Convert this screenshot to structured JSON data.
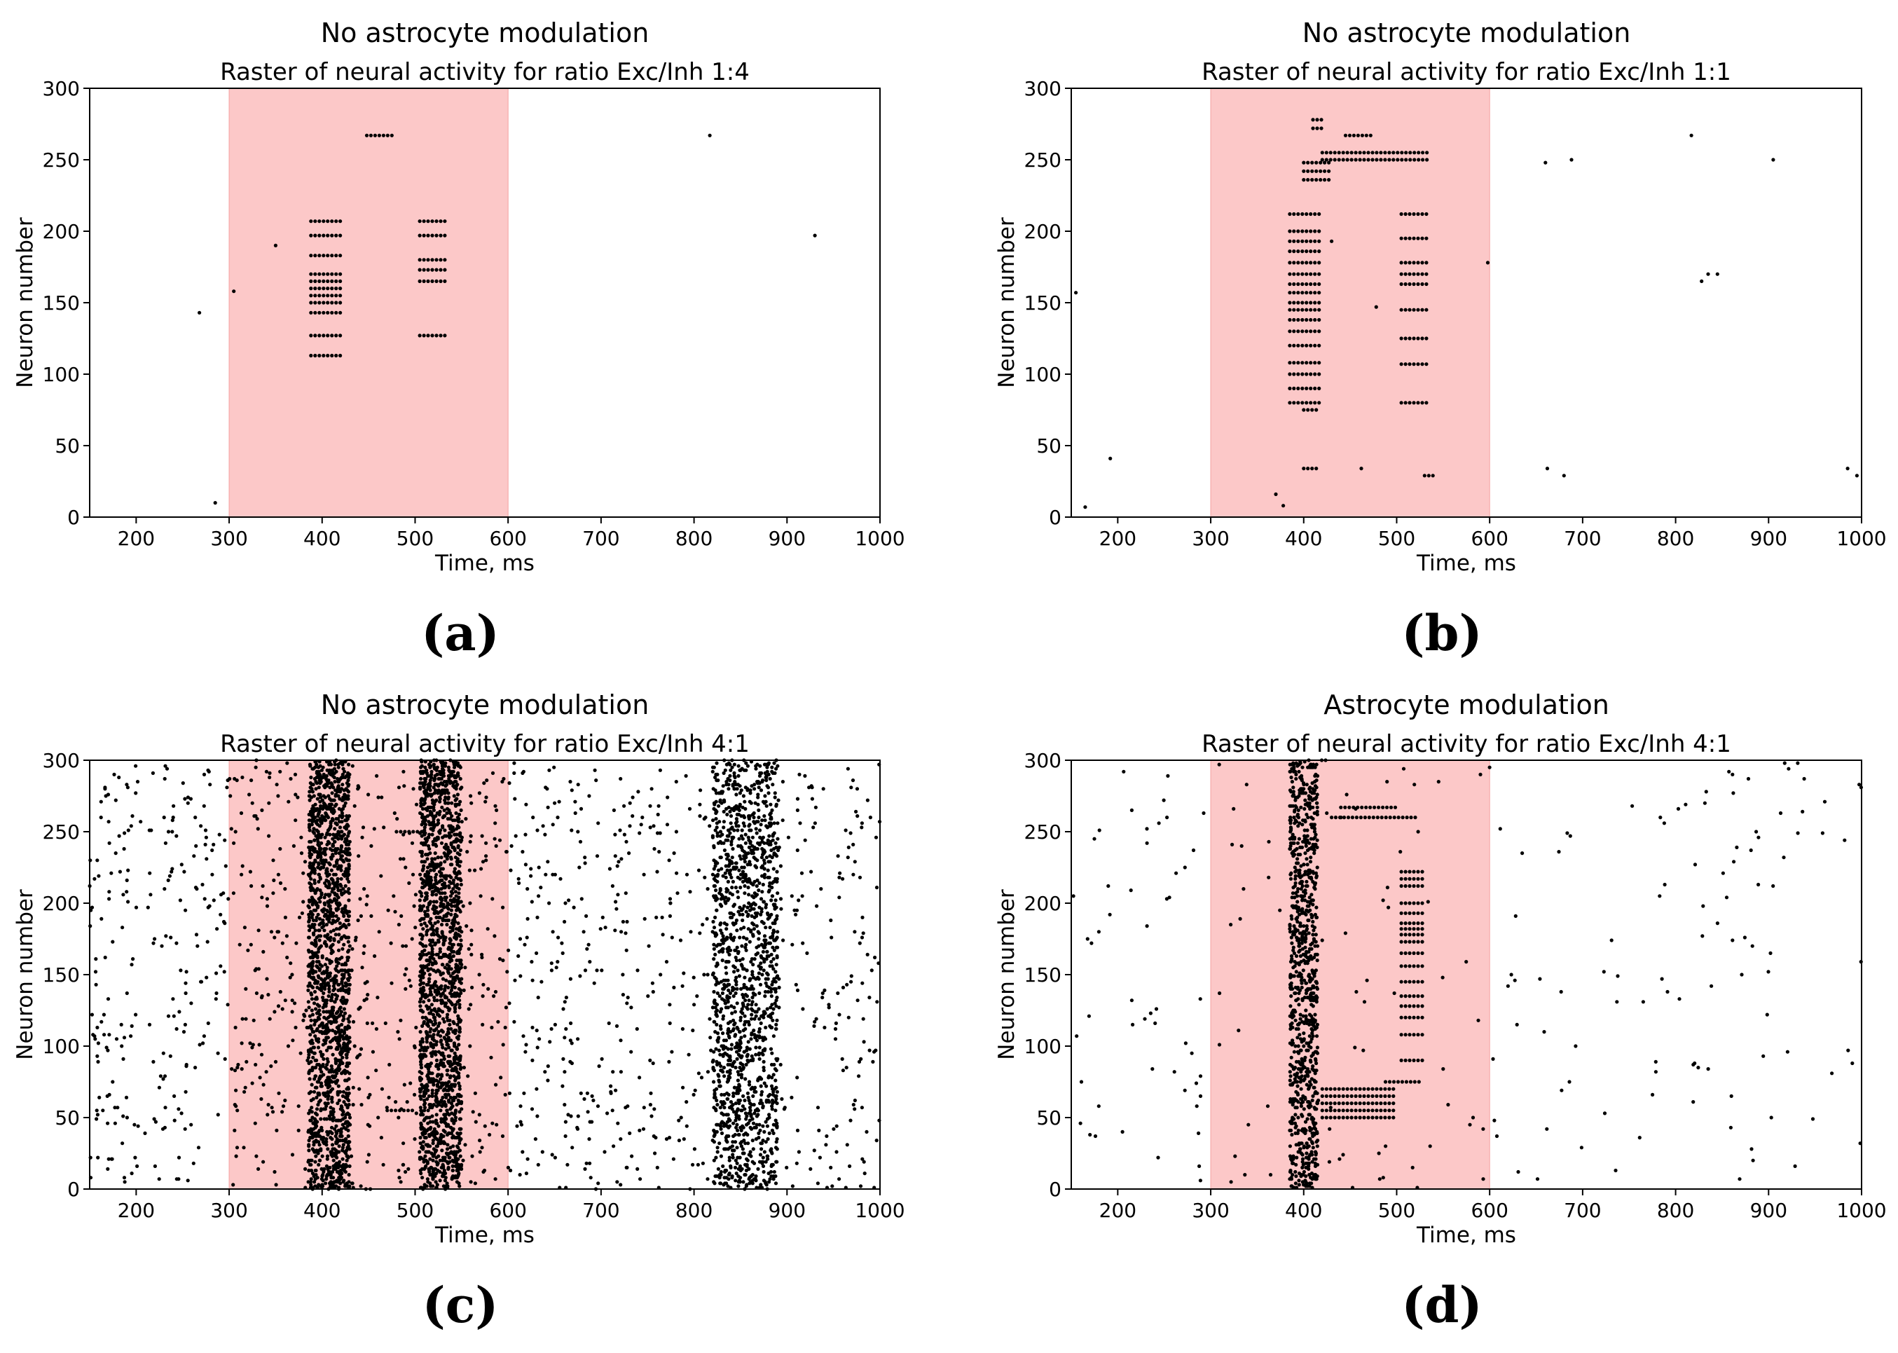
{
  "colors": {
    "stimulus": "#fcc8c8",
    "stimulus_edge": "#f4a0a0",
    "spike": "#000000",
    "axes": "#000000"
  },
  "chart_data": [
    {
      "panel": "(a)",
      "type": "scatter",
      "suptitle": "No astrocyte modulation",
      "title": "Raster of neural activity for ratio Exc/Inh 1:4",
      "xlabel": "Time, ms",
      "ylabel": "Neuron number",
      "xlim": [
        150,
        1000
      ],
      "ylim": [
        0,
        300
      ],
      "xticks": [
        200,
        300,
        400,
        500,
        600,
        700,
        800,
        900,
        1000
      ],
      "yticks": [
        0,
        50,
        100,
        150,
        200,
        250,
        300
      ],
      "stimulus": [
        300,
        600
      ],
      "isolated_spikes": [
        [
          268,
          143
        ],
        [
          285,
          10
        ],
        [
          305,
          158
        ],
        [
          350,
          190
        ],
        [
          817,
          267
        ],
        [
          930,
          197
        ]
      ],
      "row_bursts": [
        {
          "t": [
            388,
            420
          ],
          "rows": [
            207,
            197,
            183,
            170,
            165,
            160,
            155,
            150,
            143,
            127,
            113
          ],
          "step": 4.5
        },
        {
          "t": [
            448,
            478
          ],
          "rows": [
            267
          ],
          "step": 4.5
        },
        {
          "t": [
            505,
            535
          ],
          "rows": [
            207,
            197,
            180,
            173,
            165,
            127
          ],
          "step": 4.5
        }
      ],
      "random_bursts": [],
      "background_spikes": 0
    },
    {
      "panel": "(b)",
      "type": "scatter",
      "suptitle": "No astrocyte modulation",
      "title": "Raster of neural activity for ratio Exc/Inh 1:1",
      "xlabel": "Time, ms",
      "ylabel": "Neuron number",
      "xlim": [
        150,
        1000
      ],
      "ylim": [
        0,
        300
      ],
      "xticks": [
        200,
        300,
        400,
        500,
        600,
        700,
        800,
        900,
        1000
      ],
      "yticks": [
        0,
        50,
        100,
        150,
        200,
        250,
        300
      ],
      "stimulus": [
        300,
        600
      ],
      "isolated_spikes": [
        [
          155,
          157
        ],
        [
          165,
          7
        ],
        [
          192,
          41
        ],
        [
          370,
          16
        ],
        [
          378,
          8
        ],
        [
          430,
          193
        ],
        [
          462,
          34
        ],
        [
          478,
          147
        ],
        [
          598,
          178
        ],
        [
          660,
          248
        ],
        [
          662,
          34
        ],
        [
          680,
          29
        ],
        [
          688,
          250
        ],
        [
          817,
          267
        ],
        [
          828,
          165
        ],
        [
          835,
          170
        ],
        [
          845,
          170
        ],
        [
          905,
          250
        ],
        [
          985,
          34
        ],
        [
          995,
          29
        ]
      ],
      "row_bursts": [
        {
          "t": [
            385,
            420
          ],
          "rows": [
            212,
            200,
            193,
            186,
            178,
            170,
            163,
            157,
            150,
            145,
            138,
            130,
            120,
            108,
            100,
            90,
            80
          ],
          "step": 4.5
        },
        {
          "t": [
            400,
            415
          ],
          "rows": [
            75
          ],
          "step": 4.5
        },
        {
          "t": [
            400,
            415
          ],
          "rows": [
            34
          ],
          "step": 4.5
        },
        {
          "t": [
            400,
            430
          ],
          "rows": [
            248,
            242,
            236
          ],
          "step": 4.5
        },
        {
          "t": [
            420,
            535
          ],
          "rows": [
            255,
            250
          ],
          "step": 4.5
        },
        {
          "t": [
            410,
            420
          ],
          "rows": [
            278,
            272
          ],
          "step": 4.5
        },
        {
          "t": [
            445,
            475
          ],
          "rows": [
            267
          ],
          "step": 4.5
        },
        {
          "t": [
            505,
            535
          ],
          "rows": [
            212,
            195,
            178,
            170,
            163,
            145,
            125,
            107,
            80
          ],
          "step": 4.5
        },
        {
          "t": [
            530,
            540
          ],
          "rows": [
            29
          ],
          "step": 4.5
        }
      ],
      "random_bursts": [],
      "background_spikes": 0
    },
    {
      "panel": "(c)",
      "type": "scatter",
      "suptitle": "No astrocyte modulation",
      "title": "Raster of neural activity for ratio Exc/Inh 4:1",
      "xlabel": "Time, ms",
      "ylabel": "Neuron number",
      "xlim": [
        150,
        1000
      ],
      "ylim": [
        0,
        300
      ],
      "xticks": [
        200,
        300,
        400,
        500,
        600,
        700,
        800,
        900,
        1000
      ],
      "yticks": [
        0,
        50,
        100,
        150,
        200,
        250,
        300
      ],
      "stimulus": [
        300,
        600
      ],
      "isolated_spikes": [],
      "row_bursts": [
        {
          "t": [
            480,
            510
          ],
          "rows": [
            250
          ],
          "step": 4.5
        },
        {
          "t": [
            470,
            500
          ],
          "rows": [
            55
          ],
          "step": 4.5
        }
      ],
      "random_bursts": [
        {
          "t": [
            385,
            430
          ],
          "n": 1600
        },
        {
          "t": [
            505,
            550
          ],
          "n": 1600
        },
        {
          "t": [
            820,
            890
          ],
          "n": 1350
        }
      ],
      "background_spikes": 1400
    },
    {
      "panel": "(d)",
      "type": "scatter",
      "suptitle": "Astrocyte modulation",
      "title": "Raster of neural activity for ratio Exc/Inh 4:1",
      "xlabel": "Time, ms",
      "ylabel": "Neuron number",
      "xlim": [
        150,
        1000
      ],
      "ylim": [
        0,
        300
      ],
      "xticks": [
        200,
        300,
        400,
        500,
        600,
        700,
        800,
        900,
        1000
      ],
      "yticks": [
        0,
        50,
        100,
        150,
        200,
        250,
        300
      ],
      "stimulus": [
        300,
        600
      ],
      "isolated_spikes": [],
      "row_bursts": [
        {
          "t": [
            440,
            500
          ],
          "rows": [
            267
          ],
          "step": 4.5
        },
        {
          "t": [
            430,
            520
          ],
          "rows": [
            260
          ],
          "step": 4.5
        },
        {
          "t": [
            420,
            500
          ],
          "rows": [
            70,
            65,
            60,
            55,
            50
          ],
          "step": 4.5
        },
        {
          "t": [
            505,
            530
          ],
          "rows": [
            222,
            217,
            212,
            200,
            193,
            186,
            182,
            178,
            173,
            165,
            156,
            145,
            135,
            128,
            120,
            108,
            90
          ],
          "step": 4.5
        },
        {
          "t": [
            488,
            528
          ],
          "rows": [
            75
          ],
          "step": 4.5
        }
      ],
      "random_bursts": [
        {
          "t": [
            385,
            415
          ],
          "n": 900
        }
      ],
      "background_spikes": 230
    }
  ]
}
